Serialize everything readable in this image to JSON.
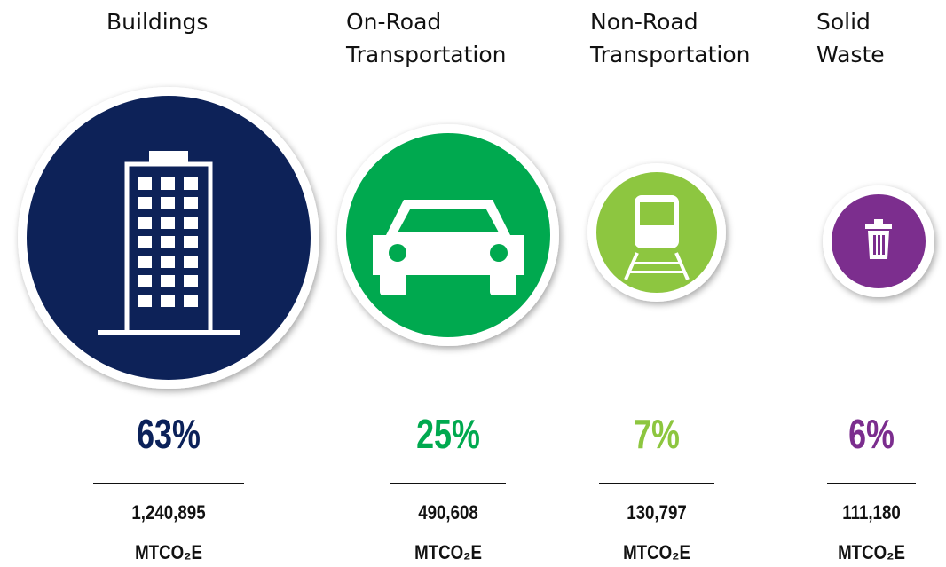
{
  "items": [
    {
      "label": [
        "Buildings"
      ],
      "percent": "63%",
      "emissions": "1,240,895",
      "unit": "MTCO₂E",
      "color": "#0b2159"
    },
    {
      "label": [
        "On-Road",
        "Transportation"
      ],
      "percent": "25%",
      "emissions": "490,608",
      "unit": "MTCO₂E",
      "color": "#00a94f"
    },
    {
      "label": [
        "Non-Road",
        "Transportation"
      ],
      "percent": "7%",
      "emissions": "130,797",
      "unit": "MTCO₂E",
      "color": "#8dc63f"
    },
    {
      "label": [
        "Solid",
        "Waste"
      ],
      "percent": "6%",
      "emissions": "111,180",
      "unit": "MTCO₂E",
      "color": "#7b2d8e"
    }
  ]
}
